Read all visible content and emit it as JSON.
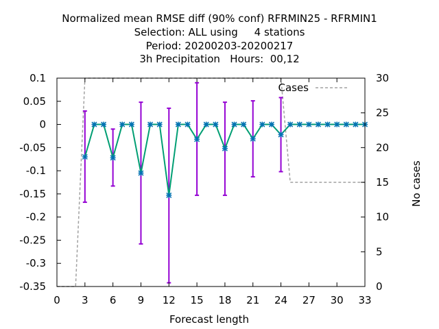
{
  "title_lines": [
    "Normalized mean RMSE diff (90% conf) RFRMIN25 - RFRMIN1",
    "Selection: ALL using     4 stations",
    "Period: 20200203-20200217",
    "3h Precipitation   Hours:  00,12"
  ],
  "chart_data": {
    "type": "line",
    "title": "Normalized mean RMSE diff (90% conf) RFRMIN25 - RFRMIN1",
    "xlabel": "Forecast length",
    "ylabel": "",
    "y2label": "No cases",
    "xlim": [
      0,
      33
    ],
    "ylim": [
      -0.35,
      0.1
    ],
    "y2lim": [
      0,
      30
    ],
    "x_ticks": [
      0,
      3,
      6,
      9,
      12,
      15,
      18,
      21,
      24,
      27,
      30,
      33
    ],
    "y_ticks": [
      -0.35,
      -0.3,
      -0.25,
      -0.2,
      -0.15,
      -0.1,
      -0.05,
      0,
      0.05,
      0.1
    ],
    "y_tick_labels": [
      "-0.35",
      "-0.3",
      "-0.25",
      "-0.2",
      "-0.15",
      "-0.1",
      "-0.05",
      "0",
      "0.05",
      "0.1"
    ],
    "y2_ticks": [
      0,
      5,
      10,
      15,
      20,
      25,
      30
    ],
    "legend": {
      "label": "Cases",
      "position": "top-right"
    },
    "colors": {
      "line": "#009e73",
      "marker": "#0072b2",
      "errorbar": "#9400d3",
      "cases": "#a0a0a0"
    },
    "series": [
      {
        "x": [
          3,
          4,
          5,
          6,
          7,
          8,
          9,
          10,
          11,
          12,
          13,
          14,
          15,
          16,
          17,
          18,
          19,
          20,
          21,
          22,
          23,
          24,
          25,
          26,
          27,
          28,
          29,
          30,
          31,
          32,
          33
        ],
        "values": [
          -0.07,
          0,
          0,
          -0.072,
          0,
          0,
          -0.105,
          0,
          0,
          -0.153,
          0,
          0,
          -0.032,
          0,
          0,
          -0.052,
          0,
          0,
          -0.031,
          0,
          0,
          -0.022,
          0,
          0,
          0,
          0,
          0,
          0,
          0,
          0,
          0
        ]
      },
      {
        "name": "Cases",
        "x": [
          0,
          1,
          2,
          3,
          4,
          5,
          6,
          7,
          8,
          9,
          10,
          11,
          12,
          13,
          14,
          15,
          16,
          17,
          18,
          19,
          20,
          21,
          22,
          23,
          24,
          25,
          26,
          27,
          28,
          29,
          30,
          31,
          32,
          33
        ],
        "values": [
          0,
          0,
          0,
          30,
          30,
          30,
          30,
          30,
          30,
          30,
          30,
          30,
          30,
          30,
          30,
          30,
          30,
          30,
          30,
          30,
          30,
          30,
          30,
          30,
          30,
          15,
          15,
          15,
          15,
          15,
          15,
          15,
          15,
          15
        ]
      }
    ],
    "error_bars": [
      {
        "x": 3,
        "low": -0.168,
        "high": 0.029
      },
      {
        "x": 6,
        "low": -0.133,
        "high": -0.01
      },
      {
        "x": 9,
        "low": -0.258,
        "high": 0.048
      },
      {
        "x": 12,
        "low": -0.342,
        "high": 0.035
      },
      {
        "x": 15,
        "low": -0.153,
        "high": 0.09
      },
      {
        "x": 18,
        "low": -0.153,
        "high": 0.048
      },
      {
        "x": 21,
        "low": -0.113,
        "high": 0.051
      },
      {
        "x": 24,
        "low": -0.102,
        "high": 0.058
      }
    ]
  }
}
